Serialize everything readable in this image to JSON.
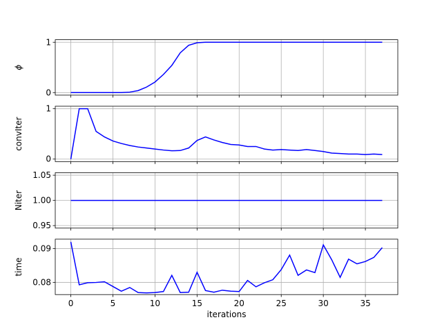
{
  "chart_data": [
    {
      "type": "line",
      "ylabel": "ϕ",
      "xlim": [
        -1.85,
        38.85
      ],
      "xticks": [
        0,
        5,
        10,
        15,
        20,
        25,
        30,
        35
      ],
      "ylim": [
        -0.05,
        1.05
      ],
      "yticks": [
        0,
        1
      ],
      "grid": true,
      "x": [
        0,
        1,
        2,
        3,
        4,
        5,
        6,
        7,
        8,
        9,
        10,
        11,
        12,
        13,
        14,
        15,
        16,
        17,
        18,
        19,
        20,
        21,
        22,
        23,
        24,
        25,
        26,
        27,
        28,
        29,
        30,
        31,
        32,
        33,
        34,
        35,
        36,
        37
      ],
      "series": [
        {
          "color": "#0000ff",
          "values": [
            0,
            0,
            0,
            0,
            0,
            0,
            0,
            0.01,
            0.04,
            0.11,
            0.21,
            0.36,
            0.54,
            0.79,
            0.94,
            0.99,
            1,
            1,
            1,
            1,
            1,
            1,
            1,
            1,
            1,
            1,
            1,
            1,
            1,
            1,
            1,
            1,
            1,
            1,
            1,
            1,
            1,
            1
          ]
        }
      ]
    },
    {
      "type": "line",
      "ylabel": "convIter",
      "xlim": [
        -1.85,
        38.85
      ],
      "xticks": [
        0,
        5,
        10,
        15,
        20,
        25,
        30,
        35
      ],
      "ylim": [
        -0.05,
        1.05
      ],
      "yticks": [
        0,
        1
      ],
      "grid": true,
      "x": [
        0,
        1,
        2,
        3,
        4,
        5,
        6,
        7,
        8,
        9,
        10,
        11,
        12,
        13,
        14,
        15,
        16,
        17,
        18,
        19,
        20,
        21,
        22,
        23,
        24,
        25,
        26,
        27,
        28,
        29,
        30,
        31,
        32,
        33,
        34,
        35,
        36,
        37
      ],
      "series": [
        {
          "color": "#0000ff",
          "values": [
            0,
            1,
            1,
            0.55,
            0.44,
            0.36,
            0.31,
            0.27,
            0.24,
            0.22,
            0.2,
            0.18,
            0.165,
            0.17,
            0.22,
            0.37,
            0.44,
            0.38,
            0.33,
            0.29,
            0.28,
            0.25,
            0.25,
            0.2,
            0.18,
            0.19,
            0.18,
            0.17,
            0.19,
            0.17,
            0.15,
            0.12,
            0.11,
            0.1,
            0.1,
            0.09,
            0.1,
            0.09
          ]
        }
      ]
    },
    {
      "type": "line",
      "ylabel": "Niter",
      "xlim": [
        -1.85,
        38.85
      ],
      "xticks": [
        0,
        5,
        10,
        15,
        20,
        25,
        30,
        35
      ],
      "ylim": [
        0.945,
        1.055
      ],
      "yticks": [
        0.95,
        {
          "value": 1,
          "label": "1.00"
        },
        1.05
      ],
      "grid": true,
      "x": [
        0,
        1,
        2,
        3,
        4,
        5,
        6,
        7,
        8,
        9,
        10,
        11,
        12,
        13,
        14,
        15,
        16,
        17,
        18,
        19,
        20,
        21,
        22,
        23,
        24,
        25,
        26,
        27,
        28,
        29,
        30,
        31,
        32,
        33,
        34,
        35,
        36,
        37
      ],
      "series": [
        {
          "color": "#0000ff",
          "values": [
            1,
            1,
            1,
            1,
            1,
            1,
            1,
            1,
            1,
            1,
            1,
            1,
            1,
            1,
            1,
            1,
            1,
            1,
            1,
            1,
            1,
            1,
            1,
            1,
            1,
            1,
            1,
            1,
            1,
            1,
            1,
            1,
            1,
            1,
            1,
            1,
            1,
            1
          ]
        }
      ]
    },
    {
      "type": "line",
      "ylabel": "time",
      "xlabel": "iterations",
      "xlim": [
        -1.85,
        38.85
      ],
      "xticks": [
        0,
        5,
        10,
        15,
        20,
        25,
        30,
        35
      ],
      "ylim": [
        0.0764,
        0.0928
      ],
      "yticks": [
        0.08,
        0.09
      ],
      "grid": true,
      "x": [
        0,
        1,
        2,
        3,
        4,
        5,
        6,
        7,
        8,
        9,
        10,
        11,
        12,
        13,
        14,
        15,
        16,
        17,
        18,
        19,
        20,
        21,
        22,
        23,
        24,
        25,
        26,
        27,
        28,
        29,
        30,
        31,
        32,
        33,
        34,
        35,
        36,
        37
      ],
      "series": [
        {
          "color": "#0000ff",
          "values": [
            0.092,
            0.0793,
            0.0799,
            0.08,
            0.0802,
            0.0788,
            0.0774,
            0.0785,
            0.077,
            0.0769,
            0.077,
            0.0773,
            0.0821,
            0.077,
            0.0771,
            0.083,
            0.0776,
            0.0771,
            0.0777,
            0.0774,
            0.0773,
            0.0806,
            0.0787,
            0.0799,
            0.0808,
            0.0838,
            0.0881,
            0.0821,
            0.0837,
            0.0829,
            0.0911,
            0.0867,
            0.0815,
            0.0869,
            0.0855,
            0.0862,
            0.0874,
            0.0903
          ]
        }
      ]
    }
  ]
}
